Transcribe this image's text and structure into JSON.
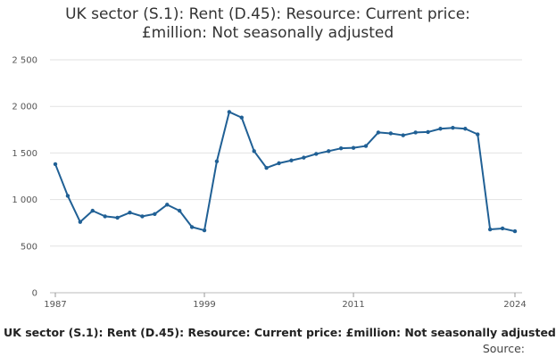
{
  "chart_data": {
    "type": "line",
    "title_line1": "UK sector (S.1): Rent (D.45): Resource: Current price:",
    "title_line2": "£million: Not seasonally adjusted",
    "xlabel": "",
    "ylabel": "",
    "x": [
      1987,
      1988,
      1989,
      1990,
      1991,
      1992,
      1993,
      1994,
      1995,
      1996,
      1997,
      1998,
      1999,
      2000,
      2001,
      2002,
      2003,
      2004,
      2005,
      2006,
      2007,
      2008,
      2009,
      2010,
      2011,
      2012,
      2013,
      2014,
      2015,
      2016,
      2017,
      2018,
      2019,
      2020,
      2021,
      2022,
      2023,
      2024
    ],
    "series": [
      {
        "values": [
          1380,
          1040,
          760,
          880,
          820,
          805,
          860,
          820,
          845,
          945,
          880,
          705,
          670,
          1410,
          1940,
          1880,
          1520,
          1340,
          1390,
          1420,
          1450,
          1490,
          1520,
          1550,
          1555,
          1575,
          1720,
          1710,
          1690,
          1720,
          1725,
          1760,
          1770,
          1760,
          1700,
          680,
          690,
          660
        ],
        "color": "#206095"
      }
    ],
    "ylim": [
      0,
      2500
    ],
    "xlim": [
      1987,
      2024
    ],
    "y_ticks": [
      0,
      500,
      1000,
      1500,
      2000,
      2500
    ],
    "y_tick_labels": [
      "0",
      "500",
      "1 000",
      "1 500",
      "2 000",
      "2 500"
    ],
    "x_ticks": [
      1987,
      1999,
      2011,
      2024
    ],
    "x_tick_labels": [
      "1987",
      "1999",
      "2011",
      "2024"
    ],
    "grid": true,
    "legend": "none"
  },
  "footer": {
    "series_label": "UK sector (S.1): Rent (D.45): Resource: Current price: £million: Not seasonally adjusted",
    "source_label": "Source:"
  }
}
